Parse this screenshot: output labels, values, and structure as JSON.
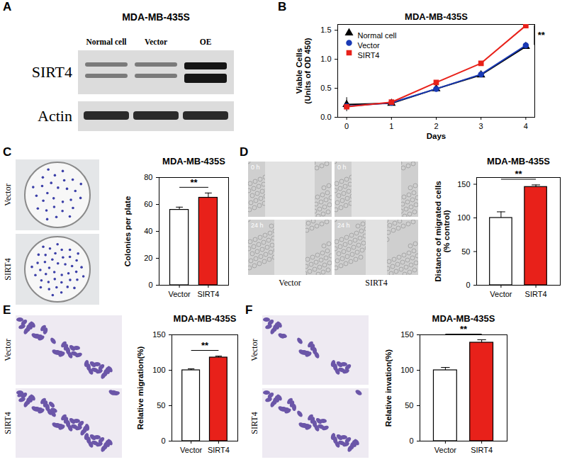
{
  "panel_labels": [
    "A",
    "B",
    "C",
    "D",
    "E",
    "F"
  ],
  "blot": {
    "title": "MDA-MB-435S",
    "lanes": [
      "Normal cell",
      "Vector",
      "OE"
    ],
    "proteins": [
      "SIRT4",
      "Actin"
    ]
  },
  "images": [
    {
      "labels": [
        "Vector",
        "SIRT4"
      ]
    },
    {
      "labels": [
        "Vector",
        "SIRT4"
      ],
      "times": [
        "0 h",
        "24 h"
      ]
    },
    {
      "labels": [
        "Vector",
        "SIRT4"
      ]
    },
    {
      "labels": [
        "Vector",
        "SIRT4"
      ]
    }
  ],
  "chart_data": [
    {
      "type": "line",
      "title": "MDA-MB-435S",
      "x_label": "Days",
      "y_label": "Viable Cells\n(Units of OD 450)",
      "x": [
        0,
        1,
        2,
        3,
        4
      ],
      "xlim": [
        -0.2,
        4.2
      ],
      "xticks": [
        0,
        1,
        2,
        3,
        4
      ],
      "ylim": [
        0,
        1.6
      ],
      "yticks": [
        {
          "value": 0,
          "label": "0.0"
        },
        {
          "value": 0.5,
          "label": "0.5"
        },
        {
          "value": 1,
          "label": "1.0"
        },
        {
          "value": 1.5,
          "label": "1.5"
        }
      ],
      "legend": "upper left",
      "series": [
        {
          "name": "Normal cell",
          "color": "#000000",
          "marker": "triangle",
          "values": [
            0.22,
            0.24,
            0.49,
            0.73,
            1.22
          ],
          "errors": [
            0.12,
            0.01,
            0.01,
            0.03,
            0.03
          ]
        },
        {
          "name": "Vector",
          "color": "#1a3ab5",
          "marker": "circle",
          "values": [
            0.19,
            0.25,
            0.49,
            0.74,
            1.24
          ],
          "errors": [
            0.03,
            0.01,
            0.01,
            0.03,
            0.04
          ]
        },
        {
          "name": "SIRT4",
          "color": "#e8211a",
          "marker": "square",
          "values": [
            0.18,
            0.26,
            0.6,
            0.93,
            1.58
          ],
          "errors": [
            0.02,
            0.01,
            0.01,
            0.03,
            0.03
          ]
        }
      ],
      "annotations": [
        {
          "text": "**",
          "between": [
            "Vector",
            "SIRT4"
          ]
        }
      ]
    },
    {
      "type": "bar",
      "title": "MDA-MB-435S",
      "y_label": "Colonies per plate",
      "categories": [
        "Vector",
        "SIRT4"
      ],
      "values": [
        56,
        65
      ],
      "errors": [
        2,
        3.5
      ],
      "colors": [
        "#ffffff",
        "#e8211a"
      ],
      "ylim": [
        0,
        80
      ],
      "yticks": [
        0,
        20,
        40,
        60,
        80
      ],
      "annotations": [
        {
          "text": "**",
          "between": [
            "Vector",
            "SIRT4"
          ]
        }
      ]
    },
    {
      "type": "bar",
      "title": "MDA-MB-435S",
      "y_label": "Distance of migrated cells\n(% control)",
      "categories": [
        "Vector",
        "SIRT4"
      ],
      "values": [
        100,
        146
      ],
      "errors": [
        9,
        3
      ],
      "colors": [
        "#ffffff",
        "#e8211a"
      ],
      "ylim": [
        0,
        160
      ],
      "yticks": [
        0,
        50,
        100,
        150
      ],
      "annotations": [
        {
          "text": "**",
          "between": [
            "Vector",
            "SIRT4"
          ]
        }
      ]
    },
    {
      "type": "bar",
      "title": "MDA-MB-435S",
      "y_label": "Relative migration(%)",
      "categories": [
        "Vector",
        "SIRT4"
      ],
      "values": [
        100,
        118
      ],
      "errors": [
        2,
        2
      ],
      "colors": [
        "#ffffff",
        "#e8211a"
      ],
      "ylim": [
        0,
        150
      ],
      "yticks": [
        0,
        50,
        100,
        150
      ],
      "annotations": [
        {
          "text": "**",
          "between": [
            "Vector",
            "SIRT4"
          ]
        }
      ]
    },
    {
      "type": "bar",
      "title": "MDA-MB-435S",
      "y_label": "Relative invation(%)",
      "categories": [
        "Vector",
        "SIRT4"
      ],
      "values": [
        100,
        139
      ],
      "errors": [
        4,
        4
      ],
      "colors": [
        "#ffffff",
        "#e8211a"
      ],
      "ylim": [
        0,
        150
      ],
      "yticks": [
        0,
        50,
        100,
        150
      ],
      "annotations": [
        {
          "text": "**",
          "between": [
            "Vector",
            "SIRT4"
          ]
        }
      ]
    }
  ]
}
